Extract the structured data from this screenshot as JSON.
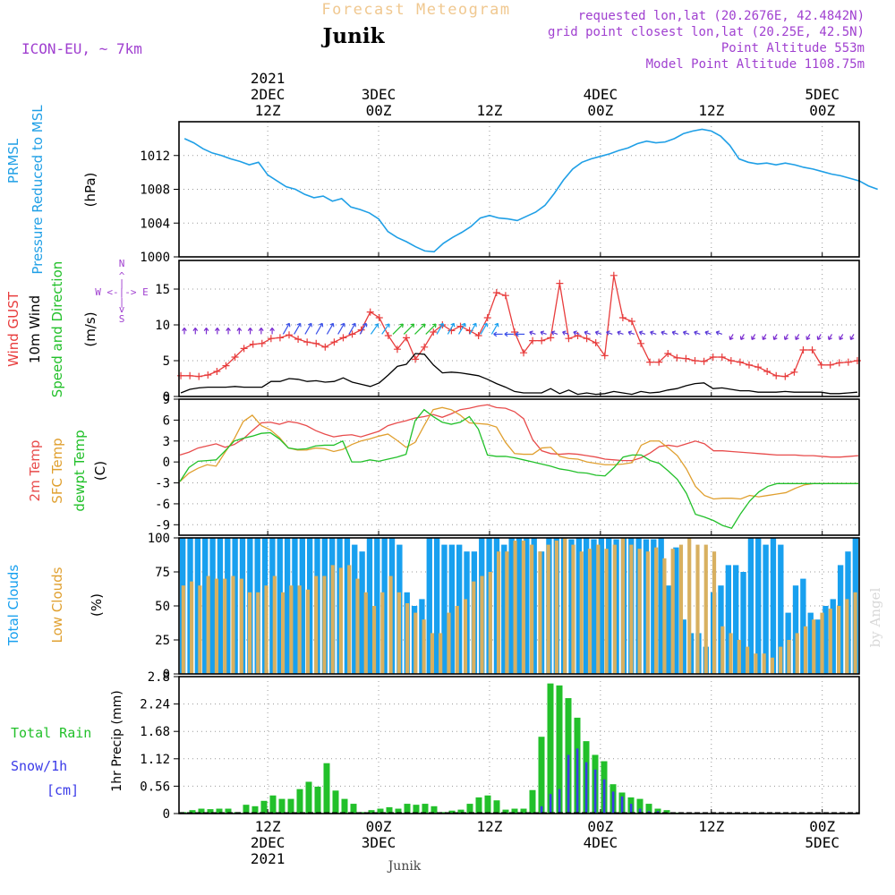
{
  "header": {
    "title": "Forecast Meteogram",
    "location": "Junik",
    "model": "ICON-EU, ~ 7km",
    "info_lines": [
      "requested lon,lat (20.2676E, 42.4842N)",
      "grid point closest lon,lat (20.25E, 42.5N)",
      "Point Altitude 553m",
      "Model Point Altitude 1108.75m"
    ],
    "footer_name": "Junik",
    "watermark": "by Angel"
  },
  "colors": {
    "pressure": "#1f9fe6",
    "gust": "#e83c3c",
    "wind": "#000000",
    "temp": "#e84c4c",
    "sfc": "#e0a030",
    "dew": "#22c02a",
    "total_clouds": "#18a0ef",
    "low_clouds": "#d8b060",
    "rain": "#22c02a",
    "snow": "#3a3ae8",
    "info": "#a040d0",
    "title": "#f0c890"
  },
  "time_axis": {
    "top": [
      {
        "h": 12,
        "lines": [
          "2021",
          "2DEC",
          "12Z"
        ]
      },
      {
        "h": 24,
        "lines": [
          "3DEC",
          "00Z"
        ]
      },
      {
        "h": 36,
        "lines": [
          "12Z"
        ]
      },
      {
        "h": 48,
        "lines": [
          "4DEC",
          "00Z"
        ]
      },
      {
        "h": 60,
        "lines": [
          "12Z"
        ]
      },
      {
        "h": 72,
        "lines": [
          "5DEC",
          "00Z"
        ]
      }
    ],
    "bottom": [
      {
        "h": 12,
        "lines": [
          "12Z",
          "2DEC",
          "2021"
        ]
      },
      {
        "h": 24,
        "lines": [
          "00Z",
          "3DEC"
        ]
      },
      {
        "h": 36,
        "lines": [
          "12Z"
        ]
      },
      {
        "h": 48,
        "lines": [
          "00Z",
          "4DEC"
        ]
      },
      {
        "h": 60,
        "lines": [
          "12Z"
        ]
      },
      {
        "h": 72,
        "lines": [
          "00Z",
          "5DEC"
        ]
      }
    ]
  },
  "panel_labels": {
    "pressure": {
      "series": [
        "PRMSL",
        "Pressure Reduced to MSL"
      ],
      "unit": "(hPa)"
    },
    "wind": {
      "gust": "Wind GUST",
      "wind": "10m Wind",
      "dir": "Speed and Direction",
      "unit": "(m/s)",
      "compass": [
        "N",
        "^",
        "|",
        "W <-|-> E",
        "|",
        "v",
        "S"
      ]
    },
    "temp": {
      "t2m": "2m Temp",
      "sfc": "SFC Temp",
      "dew": "dewpt Temp",
      "unit": "(C)"
    },
    "clouds": {
      "total": "Total Clouds",
      "low": "Low Clouds",
      "unit": "(%)"
    },
    "precip": {
      "rain": "Total  Rain",
      "snow": "Snow/1h",
      "cm": "[cm]",
      "axis": "1hr Precip (mm)"
    }
  },
  "chart_data": [
    {
      "type": "line",
      "name": "pressure",
      "ylim": [
        1000,
        1016
      ],
      "yticks": [
        1000,
        1004,
        1008,
        1012
      ],
      "x_hours_start": 0,
      "x_hours_end": 76,
      "series": [
        {
          "name": "PRMSL",
          "x": [
            0,
            1,
            2,
            3,
            4,
            5,
            6,
            7,
            8,
            9,
            10,
            11,
            12,
            13,
            14,
            15,
            16,
            17,
            18,
            19,
            20,
            21,
            22,
            23,
            24,
            25,
            26,
            27,
            28,
            29,
            30,
            31,
            32,
            33,
            34,
            35,
            36,
            37,
            38,
            39,
            40,
            41,
            42,
            43,
            44,
            45,
            46,
            47,
            48,
            49,
            50,
            51,
            52,
            53,
            54,
            55,
            56,
            57,
            58,
            59,
            60,
            61,
            62,
            63,
            64,
            65,
            66,
            67,
            68,
            69,
            70,
            71,
            72,
            73,
            74,
            75
          ],
          "values": [
            1014.0,
            1013.5,
            1012.8,
            1012.3,
            1012.0,
            1011.6,
            1011.3,
            1010.9,
            1011.2,
            1009.7,
            1009.0,
            1008.3,
            1008.0,
            1007.4,
            1007.0,
            1007.2,
            1006.6,
            1006.9,
            1005.9,
            1005.6,
            1005.2,
            1004.5,
            1003.0,
            1002.3,
            1001.8,
            1001.2,
            1000.7,
            1000.6,
            1001.6,
            1002.3,
            1002.9,
            1003.6,
            1004.6,
            1004.9,
            1004.6,
            1004.5,
            1004.3,
            1004.8,
            1005.3,
            1006.1,
            1007.5,
            1009.1,
            1010.4,
            1011.2,
            1011.6,
            1011.9,
            1012.2,
            1012.6,
            1012.9,
            1013.4,
            1013.7,
            1013.5,
            1013.6,
            1014.0,
            1014.6,
            1014.9,
            1015.1,
            1014.9,
            1014.3,
            1013.2,
            1011.6,
            1011.2,
            1011.0,
            1011.1,
            1010.9,
            1011.1,
            1010.9,
            1010.6,
            1010.4,
            1010.1,
            1009.8,
            1009.6,
            1009.3,
            1009.0,
            1008.4,
            1008.0
          ]
        }
      ]
    },
    {
      "type": "line",
      "name": "wind",
      "ylim": [
        0,
        19
      ],
      "yticks": [
        0,
        5,
        10,
        15
      ],
      "series": [
        {
          "name": "Wind GUST",
          "values": [
            2.9,
            2.9,
            2.8,
            3.0,
            3.5,
            4.3,
            5.5,
            6.7,
            7.3,
            7.4,
            8.1,
            8.2,
            8.6,
            8.0,
            7.6,
            7.4,
            6.9,
            7.6,
            8.2,
            8.7,
            9.3,
            11.8,
            11.0,
            8.5,
            6.6,
            8.2,
            5.2,
            6.9,
            9.0,
            10.0,
            9.2,
            9.8,
            9.2,
            8.5,
            11.0,
            14.5,
            14.1,
            9.0,
            6.1,
            7.8,
            7.8,
            8.2,
            15.8,
            8.1,
            8.5,
            8.1,
            7.5,
            5.7,
            16.9,
            11.0,
            10.5,
            7.4,
            4.8,
            4.8,
            6.0,
            5.4,
            5.3,
            5.0,
            4.9,
            5.5,
            5.5,
            5.0,
            4.8,
            4.4,
            4.1,
            3.5,
            2.9,
            2.8,
            3.4,
            6.5,
            6.5,
            4.4,
            4.4,
            4.7,
            4.8,
            5.0
          ]
        },
        {
          "name": "10m Wind",
          "values": [
            0.5,
            1.0,
            1.2,
            1.3,
            1.3,
            1.3,
            1.4,
            1.3,
            1.3,
            1.3,
            2.1,
            2.1,
            2.5,
            2.4,
            2.1,
            2.2,
            2.0,
            2.1,
            2.6,
            2.0,
            1.7,
            1.4,
            1.9,
            3.0,
            4.2,
            4.5,
            6.0,
            5.9,
            4.4,
            3.3,
            3.4,
            3.3,
            3.1,
            2.9,
            2.4,
            1.8,
            1.3,
            0.7,
            0.5,
            0.5,
            0.5,
            1.1,
            0.4,
            0.9,
            0.3,
            0.5,
            0.3,
            0.4,
            0.7,
            0.5,
            0.3,
            0.7,
            0.5,
            0.6,
            0.9,
            1.1,
            1.5,
            1.8,
            1.9,
            1.1,
            1.2,
            1.0,
            0.8,
            0.8,
            0.6,
            0.6,
            0.6,
            0.7,
            0.6,
            0.6,
            0.6,
            0.6,
            0.4,
            0.4,
            0.5,
            0.6
          ]
        }
      ],
      "arrows_note": "direction arrows colored by speed"
    },
    {
      "type": "line",
      "name": "temperature",
      "ylim": [
        -10.5,
        9
      ],
      "yticks": [
        -9,
        -6,
        -3,
        0,
        3,
        6,
        9
      ],
      "series": [
        {
          "name": "2m Temp",
          "values": [
            1.0,
            1.4,
            2.0,
            2.3,
            2.6,
            2.1,
            2.5,
            3.3,
            4.5,
            5.6,
            5.7,
            5.4,
            5.8,
            5.6,
            5.2,
            4.5,
            4.0,
            3.6,
            3.8,
            3.9,
            3.6,
            4.0,
            4.4,
            5.2,
            5.6,
            5.9,
            6.3,
            6.5,
            6.8,
            6.4,
            6.9,
            7.5,
            7.7,
            8.0,
            8.2,
            7.8,
            7.7,
            7.2,
            6.2,
            3.2,
            1.6,
            1.2,
            1.1,
            1.2,
            1.1,
            0.9,
            0.7,
            0.4,
            0.3,
            0.2,
            0.2,
            0.6,
            1.3,
            2.2,
            2.4,
            2.2,
            2.6,
            3.0,
            2.6,
            1.6,
            1.6,
            1.5,
            1.4,
            1.3,
            1.2,
            1.1,
            1.0,
            1.0,
            1.0,
            0.9,
            0.9,
            0.8,
            0.7,
            0.7,
            0.8,
            0.9
          ]
        },
        {
          "name": "SFC Temp",
          "values": [
            -2.8,
            -1.6,
            -0.9,
            -0.4,
            -0.6,
            1.4,
            3.3,
            5.8,
            6.7,
            5.2,
            4.6,
            3.5,
            2.0,
            1.7,
            1.7,
            2.0,
            1.9,
            1.5,
            1.8,
            2.5,
            3.0,
            3.3,
            3.7,
            4.0,
            3.1,
            2.1,
            2.8,
            5.2,
            7.5,
            7.8,
            7.5,
            6.7,
            5.6,
            5.5,
            5.4,
            5.0,
            2.8,
            1.2,
            1.1,
            1.1,
            2.0,
            2.1,
            0.8,
            0.5,
            0.4,
            0.0,
            -0.2,
            -0.4,
            -0.4,
            -0.3,
            -0.1,
            2.4,
            3.0,
            3.0,
            2.0,
            0.9,
            -1.0,
            -3.5,
            -4.8,
            -5.3,
            -5.2,
            -5.2,
            -5.3,
            -4.8,
            -5.0,
            -4.8,
            -4.6,
            -4.4,
            -3.8,
            -3.3,
            -3.1,
            -3.1,
            -3.1,
            -3.1,
            -3.1,
            -3.1
          ]
        },
        {
          "name": "dewpt Temp",
          "values": [
            -2.8,
            -0.8,
            0.1,
            0.2,
            0.3,
            1.6,
            3.0,
            3.4,
            3.7,
            4.1,
            4.2,
            3.3,
            2.0,
            1.8,
            1.9,
            2.3,
            2.4,
            2.4,
            3.0,
            0.0,
            0.0,
            0.3,
            0.1,
            0.4,
            0.7,
            1.1,
            5.9,
            7.5,
            6.5,
            5.7,
            5.4,
            5.7,
            6.5,
            4.7,
            1.0,
            0.8,
            0.8,
            0.6,
            0.3,
            0.0,
            -0.3,
            -0.6,
            -1.0,
            -1.2,
            -1.5,
            -1.6,
            -1.9,
            -2.0,
            -0.8,
            0.7,
            1.0,
            1.0,
            0.2,
            -0.2,
            -1.3,
            -2.5,
            -4.5,
            -7.5,
            -7.9,
            -8.4,
            -9.1,
            -9.5,
            -7.4,
            -5.6,
            -4.3,
            -3.5,
            -3.1,
            -3.1,
            -3.1,
            -3.1,
            -3.1,
            -3.1,
            -3.1,
            -3.1,
            -3.1,
            -3.1
          ]
        }
      ]
    },
    {
      "type": "bar",
      "name": "clouds",
      "ylim": [
        0,
        100
      ],
      "yticks": [
        0,
        25,
        50,
        75,
        100
      ],
      "series": [
        {
          "name": "Total Clouds",
          "values": [
            100,
            100,
            100,
            100,
            100,
            100,
            100,
            100,
            100,
            100,
            100,
            100,
            100,
            100,
            100,
            100,
            100,
            100,
            100,
            100,
            100,
            100,
            100,
            95,
            90,
            100,
            100,
            100,
            100,
            95,
            60,
            50,
            55,
            100,
            100,
            95,
            95,
            95,
            90,
            90,
            100,
            100,
            100,
            95,
            100,
            100,
            100,
            100,
            90,
            100,
            100,
            100,
            99,
            100,
            100,
            99,
            100,
            100,
            99,
            100,
            100,
            100,
            99,
            99,
            100,
            65,
            93,
            40,
            30,
            30,
            20,
            60,
            65,
            80,
            80,
            75,
            100,
            100,
            95,
            100,
            95,
            45,
            65,
            70,
            45,
            40,
            50,
            55,
            80,
            90,
            100
          ]
        },
        {
          "name": "Low Clouds",
          "values": [
            65,
            68,
            65,
            72,
            70,
            70,
            72,
            70,
            60,
            60,
            65,
            72,
            60,
            65,
            65,
            62,
            72,
            72,
            80,
            78,
            80,
            70,
            60,
            50,
            60,
            72,
            60,
            52,
            45,
            40,
            30,
            30,
            45,
            50,
            55,
            68,
            72,
            75,
            90,
            90,
            98,
            98,
            95,
            90,
            95,
            98,
            100,
            95,
            90,
            92,
            95,
            92,
            95,
            100,
            95,
            92,
            90,
            93,
            85,
            92,
            95,
            100,
            95,
            95,
            90,
            35,
            30,
            25,
            20,
            15,
            15,
            12,
            20,
            25,
            30,
            35,
            40,
            45,
            48,
            50,
            55,
            60
          ]
        }
      ]
    },
    {
      "type": "bar",
      "name": "precip",
      "ylim": [
        0,
        2.8
      ],
      "yticks": [
        0,
        0.56,
        1.12,
        1.68,
        2.24,
        2.8
      ],
      "series": [
        {
          "name": "Total Rain",
          "values": [
            0.03,
            0.07,
            0.1,
            0.09,
            0.1,
            0.1,
            0.03,
            0.18,
            0.15,
            0.26,
            0.37,
            0.3,
            0.3,
            0.5,
            0.65,
            0.55,
            1.03,
            0.47,
            0.3,
            0.2,
            0.03,
            0.07,
            0.1,
            0.13,
            0.1,
            0.2,
            0.18,
            0.2,
            0.15,
            0.03,
            0.06,
            0.08,
            0.2,
            0.33,
            0.37,
            0.27,
            0.08,
            0.1,
            0.1,
            0.48,
            1.57,
            2.66,
            2.62,
            2.36,
            1.96,
            1.48,
            1.2,
            1.07,
            0.6,
            0.43,
            0.33,
            0.3,
            0.2,
            0.1,
            0.07,
            0.02,
            0,
            0,
            0,
            0,
            0,
            0,
            0,
            0,
            0,
            0,
            0,
            0,
            0,
            0,
            0,
            0,
            0,
            0,
            0,
            0
          ]
        },
        {
          "name": "Snow/1h",
          "values": [
            0,
            0,
            0,
            0,
            0,
            0,
            0,
            0,
            0,
            0,
            0,
            0,
            0,
            0,
            0,
            0,
            0,
            0,
            0,
            0,
            0,
            0,
            0,
            0,
            0,
            0,
            0,
            0,
            0,
            0,
            0,
            0,
            0,
            0,
            0,
            0,
            0,
            0,
            0,
            0,
            0.15,
            0.4,
            0.5,
            1.2,
            1.33,
            1.05,
            0.9,
            0.7,
            0.45,
            0.35,
            0.2,
            0.1,
            0.05,
            0.05,
            0,
            0,
            0,
            0,
            0,
            0,
            0,
            0,
            0,
            0,
            0,
            0,
            0,
            0,
            0,
            0,
            0,
            0,
            0,
            0,
            0,
            0
          ]
        }
      ]
    }
  ]
}
